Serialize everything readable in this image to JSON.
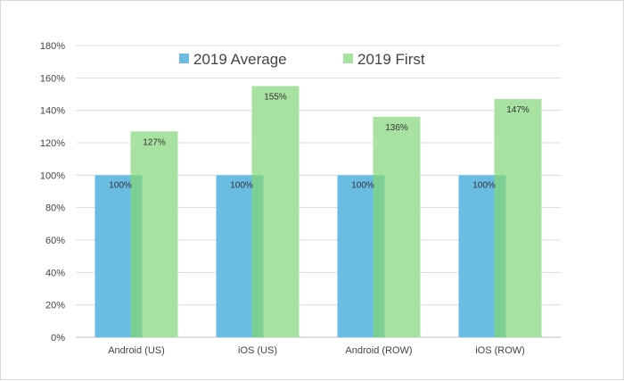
{
  "chart_data": {
    "type": "bar",
    "categories": [
      "Android (US)",
      "iOS (US)",
      "Android (ROW)",
      "iOS (ROW)"
    ],
    "series": [
      {
        "name": "2019 Average",
        "values": [
          100,
          100,
          100,
          100
        ],
        "color": "#6bbce3"
      },
      {
        "name": "2019 First",
        "values": [
          127,
          155,
          136,
          147
        ],
        "color": "#a8e2a0"
      }
    ],
    "data_labels": {
      "2019 Average": [
        "100%",
        "100%",
        "100%",
        "100%"
      ],
      "2019 First": [
        "127%",
        "155%",
        "136%",
        "147%"
      ]
    },
    "ylim": [
      0,
      180
    ],
    "yticks": [
      0,
      20,
      40,
      60,
      80,
      100,
      120,
      140,
      160,
      180
    ],
    "ytick_labels": [
      "0%",
      "20%",
      "40%",
      "60%",
      "80%",
      "100%",
      "120%",
      "140%",
      "160%",
      "180%"
    ],
    "grid": true,
    "legend_position": "top-center",
    "overlap_color": "#7ccf92",
    "gridline_color": "#d5dcef",
    "title": "",
    "xlabel": "",
    "ylabel": ""
  }
}
